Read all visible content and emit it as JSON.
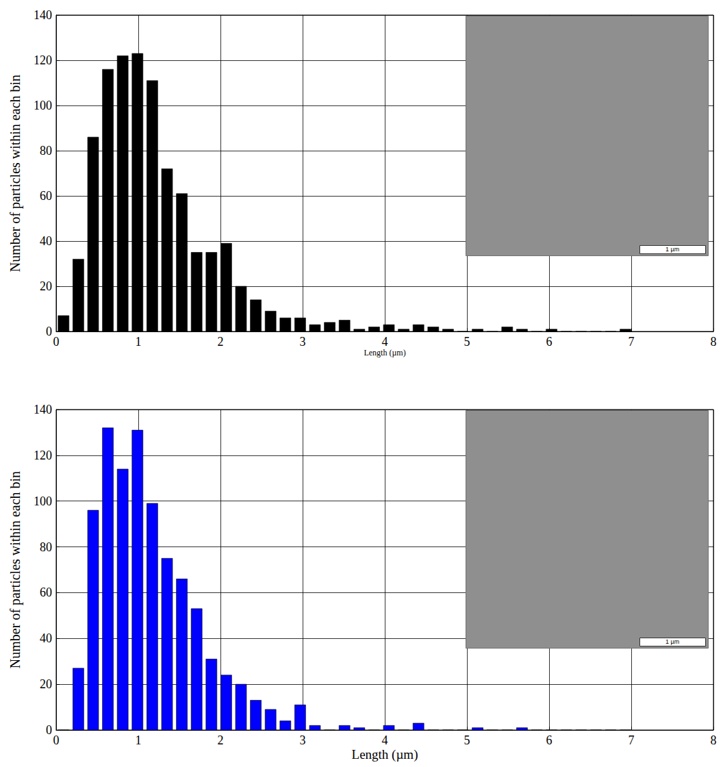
{
  "chart_data": [
    {
      "type": "histogram",
      "x_label": "Length (µm)",
      "y_label": "Number of particles within each bin",
      "bins": [
        0,
        0.18,
        0.36,
        0.54,
        0.72,
        0.9,
        1.08,
        1.26,
        1.44,
        1.62,
        1.8,
        1.98,
        2.16,
        2.34,
        2.52,
        2.7,
        2.88,
        3.06,
        3.24,
        3.42,
        3.6,
        3.78,
        3.96,
        4.14,
        4.32,
        4.5,
        4.68,
        4.86,
        5.04,
        5.22,
        5.4,
        5.58,
        5.76,
        5.94,
        6.12,
        6.3,
        6.48,
        6.66,
        6.84,
        7.02
      ],
      "values": [
        7,
        32,
        86,
        116,
        122,
        123,
        111,
        72,
        61,
        35,
        35,
        39,
        20,
        14,
        9,
        6,
        6,
        3,
        4,
        5,
        1,
        2,
        3,
        1,
        3,
        2,
        1,
        0,
        1,
        0,
        2,
        1,
        0,
        1,
        0,
        0,
        0,
        0,
        1
      ],
      "color": "#000000",
      "xlim": [
        0,
        8
      ],
      "xticks": [
        0,
        1,
        2,
        3,
        4,
        5,
        6,
        7,
        8
      ],
      "ylim": [
        0,
        140
      ],
      "yticks": [
        0,
        20,
        40,
        60,
        80,
        100,
        120,
        140
      ],
      "grid": true,
      "annotations": [
        "1 µm"
      ]
    },
    {
      "type": "histogram",
      "x_label": "Length (µm)",
      "y_label": "Number of particles within each bin",
      "bins": [
        0,
        0.18,
        0.36,
        0.54,
        0.72,
        0.9,
        1.08,
        1.26,
        1.44,
        1.62,
        1.8,
        1.98,
        2.16,
        2.34,
        2.52,
        2.7,
        2.88,
        3.06,
        3.24,
        3.42,
        3.6,
        3.78,
        3.96,
        4.14,
        4.32,
        4.5,
        4.68,
        4.86,
        5.04,
        5.22,
        5.4,
        5.58,
        5.76,
        5.94,
        6.12,
        6.3,
        6.48,
        6.66,
        6.84,
        7.02
      ],
      "values": [
        0,
        27,
        96,
        132,
        114,
        131,
        99,
        75,
        66,
        53,
        31,
        24,
        20,
        13,
        9,
        4,
        11,
        2,
        0,
        2,
        1,
        0,
        2,
        0,
        3,
        0,
        0,
        0,
        1,
        0,
        0,
        1,
        0,
        0,
        0,
        0,
        0,
        0,
        0
      ],
      "color": "#0000ff",
      "xlim": [
        0,
        8
      ],
      "xticks": [
        0,
        1,
        2,
        3,
        4,
        5,
        6,
        7,
        8
      ],
      "ylim": [
        0,
        140
      ],
      "yticks": [
        0,
        20,
        40,
        60,
        80,
        100,
        120,
        140
      ],
      "grid": true,
      "annotations": [
        "1 µm"
      ]
    }
  ]
}
